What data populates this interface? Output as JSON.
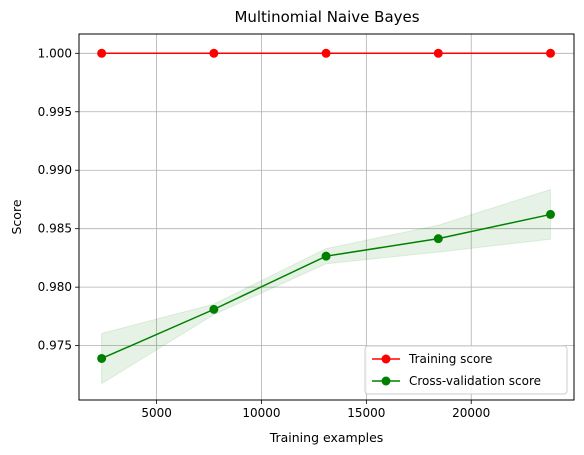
{
  "chart_data": {
    "type": "line",
    "title": "Multinomial Naive Bayes",
    "xlabel": "Training examples",
    "ylabel": "Score",
    "xlim": [
      1300,
      24900
    ],
    "ylim": [
      0.97035,
      1.00165
    ],
    "xticks": [
      5000,
      10000,
      15000,
      20000
    ],
    "yticks": [
      0.975,
      0.98,
      0.985,
      0.99,
      0.995,
      1.0
    ],
    "ytick_labels": [
      "0.975",
      "0.980",
      "0.985",
      "0.990",
      "0.995",
      "1.000"
    ],
    "grid": true,
    "legend_position": "lower-right",
    "x": [
      2380,
      7730,
      13080,
      18430,
      23780
    ],
    "series": [
      {
        "name": "Training score",
        "color": "#ff0000",
        "values": [
          1.0,
          1.0,
          1.0,
          1.0,
          1.0
        ],
        "band_lower": [
          1.0,
          1.0,
          1.0,
          1.0,
          1.0
        ],
        "band_upper": [
          1.0,
          1.0,
          1.0,
          1.0,
          1.0
        ]
      },
      {
        "name": "Cross-validation score",
        "color": "#008000",
        "values": [
          0.9739,
          0.9781,
          0.98265,
          0.98415,
          0.98622
        ],
        "band_lower": [
          0.97175,
          0.97765,
          0.982,
          0.983,
          0.9841
        ],
        "band_upper": [
          0.97605,
          0.97855,
          0.9833,
          0.9853,
          0.98835
        ]
      }
    ]
  }
}
